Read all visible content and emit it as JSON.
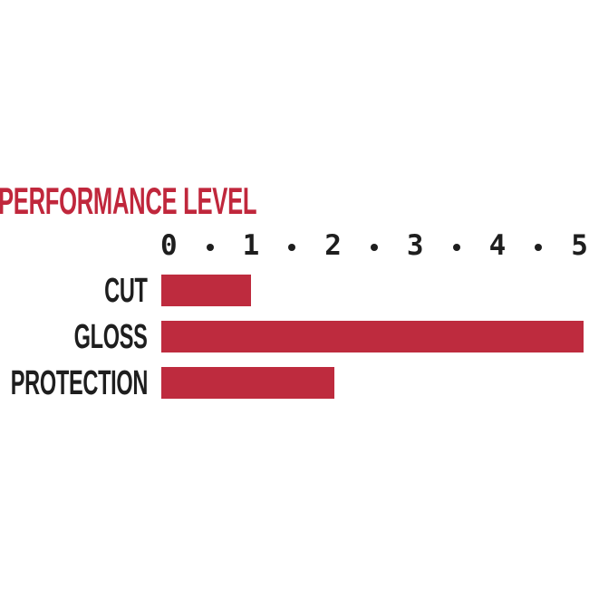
{
  "page": {
    "background": "#FFFFFF"
  },
  "chart_data": {
    "type": "bar",
    "orientation": "horizontal",
    "title": "PERFORMANCE LEVEL",
    "categories": [
      "CUT",
      "GLOSS",
      "PROTECTION"
    ],
    "values": [
      1,
      5,
      2
    ],
    "series": [
      {
        "name": "CUT",
        "value": 1
      },
      {
        "name": "GLOSS",
        "value": 5
      },
      {
        "name": "PROTECTION",
        "value": 2
      }
    ],
    "xlim": [
      0,
      5
    ],
    "x_ticks": [
      "0",
      "1",
      "2",
      "3",
      "4",
      "5"
    ],
    "tick_separator": "dot",
    "xlabel": "",
    "ylabel": "",
    "grid": false,
    "legend": false,
    "colors": {
      "title": "#C0273C",
      "bar": "#BE2B3E",
      "ink": "#1E1E1E",
      "background": "#FFFFFF"
    }
  }
}
